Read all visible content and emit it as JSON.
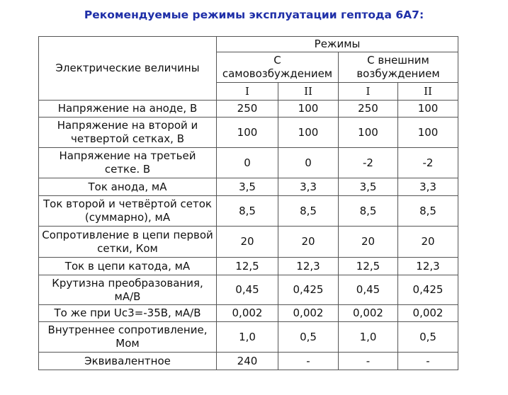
{
  "title": "Рекомендуемые режимы эксплуатации гептода 6А7:",
  "table": {
    "quantity_header": "Электрические величины",
    "modes_header": "Режимы",
    "groups": [
      {
        "label": "С самовозбуждением"
      },
      {
        "label": "С внешним возбуждением"
      }
    ],
    "subheaders": [
      "I",
      "II",
      "I",
      "II"
    ],
    "rows": [
      {
        "label": "Напряжение на аноде, В",
        "values": [
          "250",
          "100",
          "250",
          "100"
        ]
      },
      {
        "label": "Напряжение на второй и четвертой сетках, В",
        "values": [
          "100",
          "100",
          "100",
          "100"
        ]
      },
      {
        "label": "Напряжение на третьей сетке. В",
        "values": [
          "0",
          "0",
          "-2",
          "-2"
        ]
      },
      {
        "label": "Ток анода, мА",
        "values": [
          "3,5",
          "3,3",
          "3,5",
          "3,3"
        ]
      },
      {
        "label": "Ток второй и четвёртой сеток (суммарно), мА",
        "values": [
          "8,5",
          "8,5",
          "8,5",
          "8,5"
        ]
      },
      {
        "label": "Сопротивление в цепи первой сетки, Ком",
        "values": [
          "20",
          "20",
          "20",
          "20"
        ]
      },
      {
        "label": "Ток в цепи катода, мА",
        "values": [
          "12,5",
          "12,3",
          "12,5",
          "12,3"
        ]
      },
      {
        "label": "Крутизна преобразования, мА/В",
        "values": [
          "0,45",
          "0,425",
          "0,45",
          "0,425"
        ]
      },
      {
        "label": "То же при Uc3=-35В, мА/В",
        "values": [
          "0,002",
          "0,002",
          "0,002",
          "0,002"
        ]
      },
      {
        "label": "Внутреннее сопротивление, Мом",
        "values": [
          "1,0",
          "0,5",
          "1,0",
          "0,5"
        ]
      },
      {
        "label": "Эквивалентное",
        "values": [
          "240",
          "-",
          "-",
          "-"
        ]
      }
    ]
  },
  "colors": {
    "title": "#1f2fa8",
    "text": "#111111",
    "border": "#555555"
  }
}
